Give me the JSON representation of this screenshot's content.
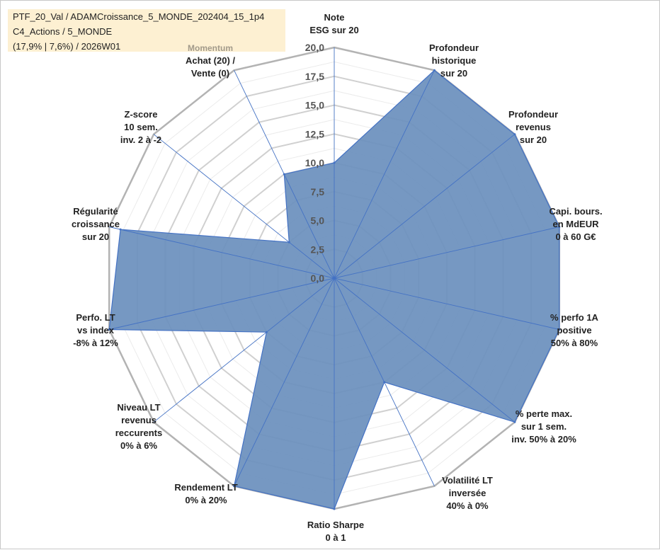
{
  "header": {
    "line1": "PTF_20_Val / ADAMCroissance_5_MONDE_202404_15_1p4",
    "line2": "C4_Actions / 5_MONDE",
    "line3": "(17,9% | 7,6%) / 2026W01"
  },
  "chart_data": {
    "type": "radar",
    "rlim": [
      0,
      20
    ],
    "tick_values": [
      0,
      2.5,
      5,
      7.5,
      10,
      12.5,
      15,
      17.5,
      20
    ],
    "tick_labels": [
      "0,0",
      "2,5",
      "5,0",
      "7,5",
      "10,0",
      "12,5",
      "15,0",
      "17,5",
      "20,0"
    ],
    "grid": true,
    "axes": [
      {
        "label": [
          "Note",
          "ESG sur 20"
        ],
        "value": 10
      },
      {
        "label": [
          "Profondeur",
          "historique",
          "sur 20"
        ],
        "value": 20
      },
      {
        "label": [
          "Profondeur",
          "revenus",
          "sur 20"
        ],
        "value": 20
      },
      {
        "label": [
          "Capi. bours.",
          "en MdEUR",
          "0 à 60 G€"
        ],
        "value": 20
      },
      {
        "label": [
          "% perfo 1A",
          "positive",
          "50% à 80%"
        ],
        "value": 20
      },
      {
        "label": [
          "% perte max.",
          "sur 1 sem.",
          "inv. 50% à 20%"
        ],
        "value": 20
      },
      {
        "label": [
          "Volatilité LT",
          "inversée",
          "40% à 0%"
        ],
        "value": 10
      },
      {
        "label": [
          "Ratio Sharpe",
          "0 à 1"
        ],
        "value": 20
      },
      {
        "label": [
          "Rendement LT",
          "0% à 20%"
        ],
        "value": 20
      },
      {
        "label": [
          "Niveau LT",
          "revenus",
          "reccurents",
          "0% à 6%"
        ],
        "value": 7.5
      },
      {
        "label": [
          "Perfo. LT",
          "vs index",
          "-8% à 12%"
        ],
        "value": 20
      },
      {
        "label": [
          "Régularité",
          "croissance",
          "sur 20"
        ],
        "value": 19
      },
      {
        "label": [
          "Z-score",
          "10 sem.",
          "inv. 2 à -2"
        ],
        "value": 5
      },
      {
        "label": [
          "Momentum",
          "Achat (20) /",
          "Vente (0)"
        ],
        "value": 10
      }
    ],
    "fill_color": "#6a8fbd",
    "line_color": "#4472c4",
    "grid_color": "#bfbfbf"
  }
}
